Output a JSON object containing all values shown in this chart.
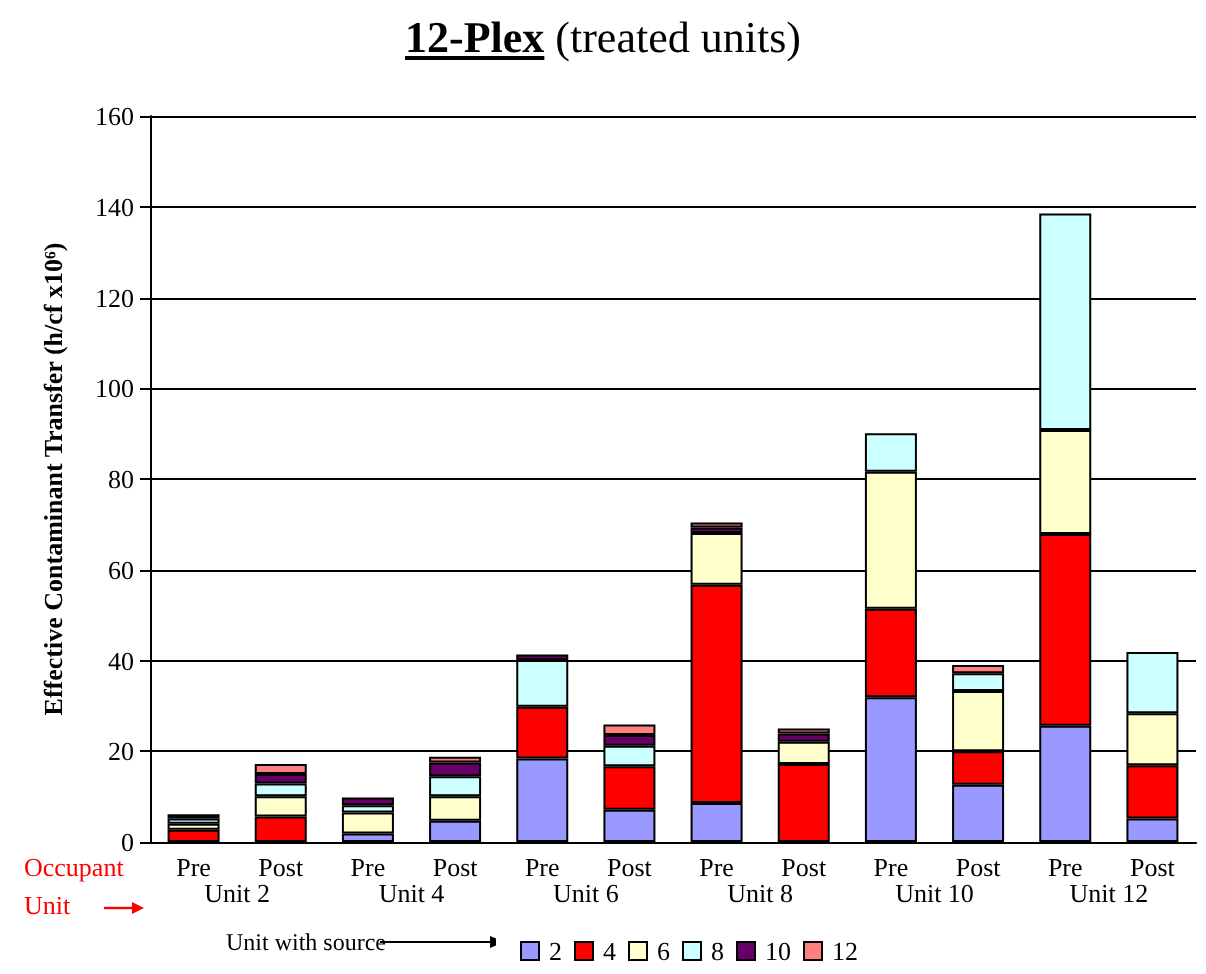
{
  "chart_data": {
    "type": "bar",
    "stacked": true,
    "title": "12-Plex (treated units)",
    "ylabel": "Effective Contaminant Transfer (h/cf x10⁶)",
    "legend_title": "Unit with source",
    "categories": [
      "Pre",
      "Post",
      "Pre",
      "Post",
      "Pre",
      "Post",
      "Pre",
      "Post",
      "Pre",
      "Post",
      "Pre",
      "Post"
    ],
    "series": [
      {
        "name": "2",
        "color": "#9999ff",
        "values": [
          0,
          0,
          1.9,
          4.7,
          18.4,
          7.1,
          8.6,
          0,
          31.9,
          12.6,
          25.6,
          5.2
        ]
      },
      {
        "name": "4",
        "color": "#ff0000",
        "values": [
          2.7,
          5.6,
          0,
          0,
          11.4,
          9.6,
          48.1,
          17.2,
          19.5,
          7.4,
          42.3,
          11.7
        ]
      },
      {
        "name": "6",
        "color": "#ffffcc",
        "values": [
          1.3,
          4.5,
          4.6,
          5.4,
          0,
          0,
          11.4,
          4.9,
          30.2,
          13.3,
          22.9,
          11.5
        ]
      },
      {
        "name": "8",
        "color": "#ccffff",
        "values": [
          1.2,
          2.8,
          1.6,
          4.4,
          10.3,
          4.5,
          0,
          0,
          8.5,
          3.9,
          47.7,
          13.5
        ]
      },
      {
        "name": "10",
        "color": "#660066",
        "values": [
          0.9,
          2.1,
          1.7,
          3.0,
          1.2,
          2.4,
          1.2,
          1.8,
          0,
          0,
          0,
          0
        ]
      },
      {
        "name": "12",
        "color": "#ff8080",
        "values": [
          0,
          2.2,
          0,
          1.3,
          0,
          2.3,
          1.1,
          1.1,
          0,
          1.8,
          0,
          0
        ]
      }
    ],
    "ylim": [
      0,
      160
    ],
    "yticks": [
      0,
      20,
      40,
      60,
      80,
      100,
      120,
      140,
      160
    ],
    "grid": "y",
    "legend": "bottom",
    "annotations": [
      "Occupant Unit",
      "Unit 2",
      "Unit 4",
      "Unit 6",
      "Unit 8",
      "Unit 10",
      "Unit 12"
    ]
  }
}
